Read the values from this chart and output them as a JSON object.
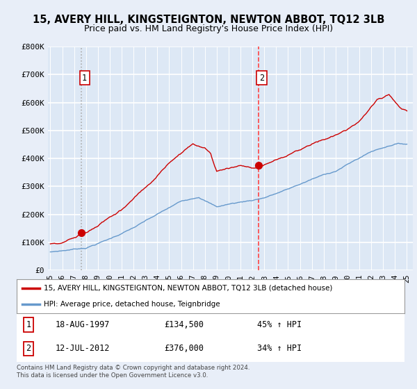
{
  "title": "15, AVERY HILL, KINGSTEIGNTON, NEWTON ABBOT, TQ12 3LB",
  "subtitle": "Price paid vs. HM Land Registry's House Price Index (HPI)",
  "ylim": [
    0,
    800000
  ],
  "yticks": [
    0,
    100000,
    200000,
    300000,
    400000,
    500000,
    600000,
    700000,
    800000
  ],
  "ytick_labels": [
    "£0",
    "£100K",
    "£200K",
    "£300K",
    "£400K",
    "£500K",
    "£600K",
    "£700K",
    "£800K"
  ],
  "sale1_year": 1997.63,
  "sale1_price": 134500,
  "sale1_label": "1",
  "sale2_year": 2012.53,
  "sale2_price": 376000,
  "sale2_label": "2",
  "legend_house": "15, AVERY HILL, KINGSTEIGNTON, NEWTON ABBOT, TQ12 3LB (detached house)",
  "legend_hpi": "HPI: Average price, detached house, Teignbridge",
  "footer": "Contains HM Land Registry data © Crown copyright and database right 2024.\nThis data is licensed under the Open Government Licence v3.0.",
  "bg_color": "#e8eef8",
  "plot_bg_color": "#dde8f5",
  "grid_color": "#ffffff",
  "house_line_color": "#cc0000",
  "hpi_line_color": "#6699cc",
  "sale1_vline_color": "#aaaaaa",
  "sale2_vline_color": "#ff4444",
  "sale_marker_color": "#cc0000",
  "box_border_color": "#cc0000",
  "title_fontsize": 10.5,
  "subtitle_fontsize": 9
}
